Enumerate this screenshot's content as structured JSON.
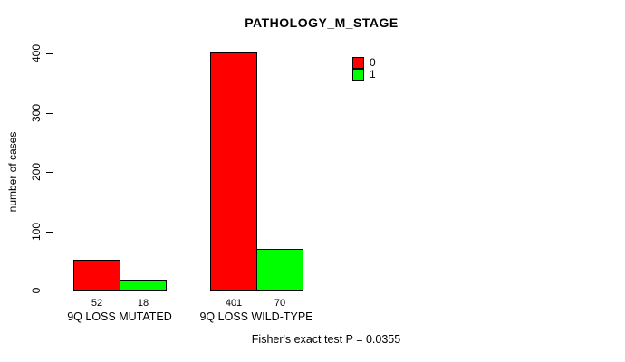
{
  "chart_data": {
    "type": "bar",
    "title": "PATHOLOGY_M_STAGE",
    "ylabel": "number of cases",
    "xlabel": "",
    "ylim": [
      0,
      400
    ],
    "yticks": [
      0,
      100,
      200,
      300,
      400
    ],
    "categories": [
      "9Q LOSS MUTATED",
      "9Q LOSS WILD-TYPE"
    ],
    "series": [
      {
        "name": "0",
        "color": "#ff0000",
        "values": [
          52,
          401
        ]
      },
      {
        "name": "1",
        "color": "#00ff00",
        "values": [
          18,
          70
        ]
      }
    ],
    "bar_value_labels": [
      [
        52,
        18
      ],
      [
        401,
        70
      ]
    ],
    "legend_position": "top-right",
    "grid": false,
    "footer": "Fisher's exact test P = 0.0355"
  }
}
